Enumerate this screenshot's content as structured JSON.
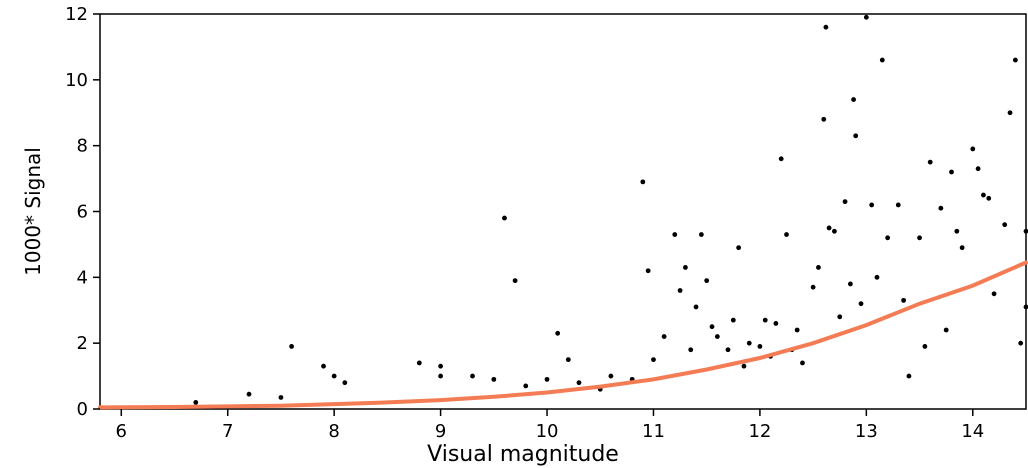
{
  "chart_data": {
    "type": "scatter",
    "title": "",
    "xlabel": "Visual magnitude",
    "ylabel": "1000* Signal",
    "xlim": [
      5.8,
      14.5
    ],
    "ylim": [
      0,
      12
    ],
    "xticks": [
      6,
      7,
      8,
      9,
      10,
      11,
      12,
      13,
      14
    ],
    "yticks": [
      0,
      2,
      4,
      6,
      8,
      10,
      12
    ],
    "grid": false,
    "legend": "none",
    "colors": {
      "points": "#000000",
      "curve": "#f47c55"
    },
    "series": [
      {
        "kind": "points",
        "x": [
          6.7,
          7.2,
          7.5,
          7.6,
          7.9,
          8.0,
          8.1,
          8.8,
          9.0,
          9.0,
          9.3,
          9.5,
          9.6,
          9.7,
          9.8,
          10.0,
          10.1,
          10.2,
          10.3,
          10.5,
          10.6,
          10.8,
          10.9,
          10.95,
          11.0,
          11.1,
          11.2,
          11.25,
          11.3,
          11.35,
          11.4,
          11.45,
          11.5,
          11.55,
          11.6,
          11.7,
          11.75,
          11.8,
          11.85,
          11.9,
          12.0,
          12.05,
          12.1,
          12.15,
          12.2,
          12.25,
          12.3,
          12.35,
          12.4,
          12.5,
          12.55,
          12.6,
          12.62,
          12.65,
          12.7,
          12.75,
          12.8,
          12.85,
          12.88,
          12.9,
          12.95,
          13.0,
          13.05,
          13.1,
          13.15,
          13.2,
          13.3,
          13.35,
          13.4,
          13.5,
          13.55,
          13.6,
          13.7,
          13.75,
          13.8,
          13.85,
          13.9,
          14.0,
          14.05,
          14.1,
          14.15,
          14.2,
          14.3,
          14.35,
          14.4,
          14.45,
          14.5,
          14.5
        ],
        "y": [
          0.2,
          0.45,
          0.35,
          1.9,
          1.3,
          1.0,
          0.8,
          1.4,
          1.3,
          1.0,
          1.0,
          0.9,
          5.8,
          3.9,
          0.7,
          0.9,
          2.3,
          1.5,
          0.8,
          0.6,
          1.0,
          0.9,
          6.9,
          4.2,
          1.5,
          2.2,
          5.3,
          3.6,
          4.3,
          1.8,
          3.1,
          5.3,
          3.9,
          2.5,
          2.2,
          1.8,
          2.7,
          4.9,
          1.3,
          2.0,
          1.9,
          2.7,
          1.6,
          2.6,
          7.6,
          5.3,
          1.8,
          2.4,
          1.4,
          3.7,
          4.3,
          8.8,
          11.6,
          5.5,
          5.4,
          2.8,
          6.3,
          3.8,
          9.4,
          8.3,
          3.2,
          11.9,
          6.2,
          4.0,
          10.6,
          5.2,
          6.2,
          3.3,
          1.0,
          5.2,
          1.9,
          7.5,
          6.1,
          2.4,
          7.2,
          5.4,
          4.9,
          7.9,
          7.3,
          6.5,
          6.4,
          3.5,
          5.6,
          9.0,
          10.6,
          2.0,
          5.4,
          3.1
        ]
      },
      {
        "kind": "fit-curve",
        "x": [
          5.8,
          6.5,
          7.0,
          7.5,
          8.0,
          8.5,
          9.0,
          9.5,
          10.0,
          10.5,
          11.0,
          11.5,
          12.0,
          12.5,
          13.0,
          13.5,
          14.0,
          14.5
        ],
        "y": [
          0.05,
          0.06,
          0.08,
          0.1,
          0.15,
          0.2,
          0.27,
          0.37,
          0.5,
          0.68,
          0.9,
          1.2,
          1.55,
          2.0,
          2.55,
          3.2,
          3.75,
          4.45
        ]
      }
    ]
  }
}
